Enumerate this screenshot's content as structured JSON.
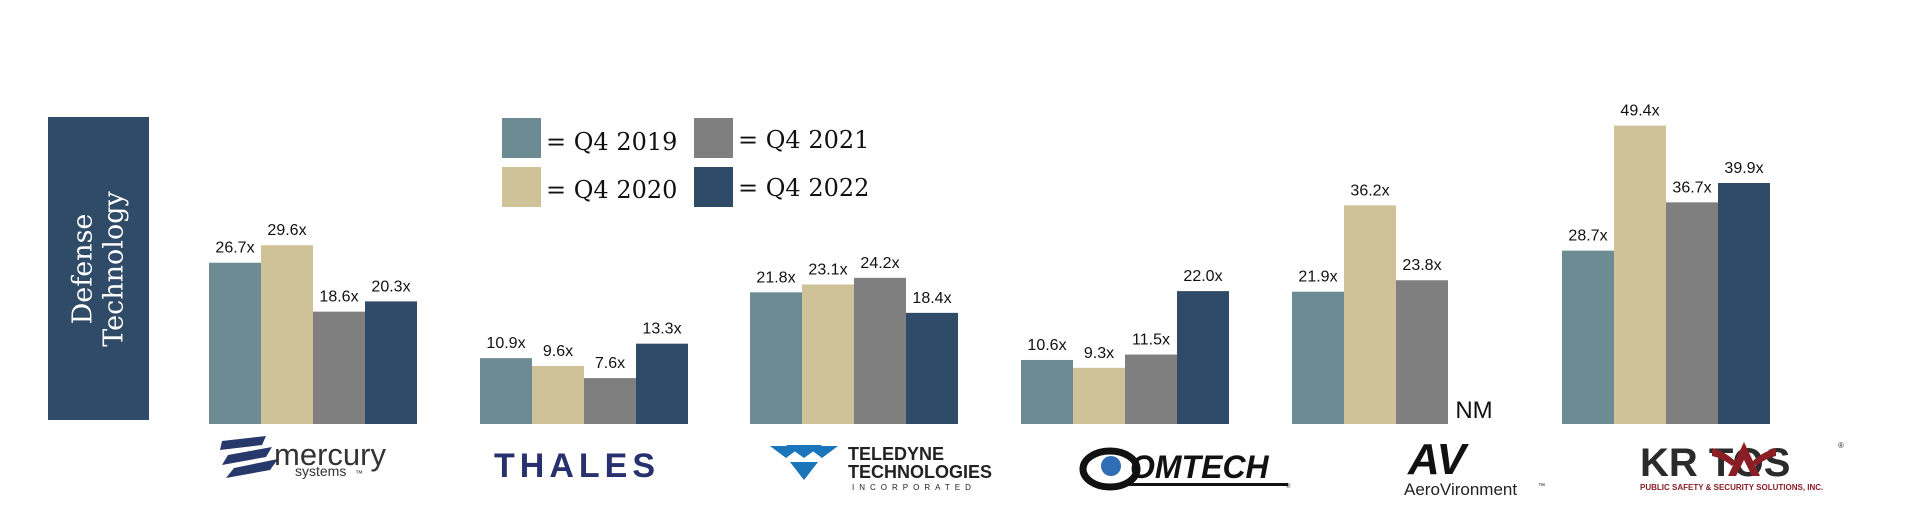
{
  "panel": {
    "line1": "Defense",
    "line2": "Technology"
  },
  "legend": [
    {
      "label": "= Q4 2019",
      "color": "#6d8b93"
    },
    {
      "label": "= Q4 2020",
      "color": "#cfc198"
    },
    {
      "label": "= Q4 2021",
      "color": "#7f7f7f"
    },
    {
      "label": "= Q4 2022",
      "color": "#2f4b67"
    }
  ],
  "chart_data": {
    "type": "bar",
    "categories": [
      "mercury systems",
      "THALES",
      "TELEDYNE TECHNOLOGIES INCORPORATED",
      "COMTECH",
      "AeroVironment",
      "KRATOS"
    ],
    "series": [
      {
        "name": "= Q4 2019",
        "values": [
          26.7,
          10.9,
          21.8,
          10.6,
          21.9,
          28.7
        ],
        "labels": [
          "26.7x",
          "10.9x",
          "21.8x",
          "10.6x",
          "21.9x",
          "28.7x"
        ]
      },
      {
        "name": "= Q4 2020",
        "values": [
          29.6,
          9.6,
          23.1,
          9.3,
          36.2,
          49.4
        ],
        "labels": [
          "29.6x",
          "9.6x",
          "23.1x",
          "9.3x",
          "36.2x",
          "49.4x"
        ]
      },
      {
        "name": "= Q4 2021",
        "values": [
          18.6,
          7.6,
          24.2,
          11.5,
          23.8,
          36.7
        ],
        "labels": [
          "18.6x",
          "7.6x",
          "24.2x",
          "11.5x",
          "23.8x",
          "36.7x"
        ]
      },
      {
        "name": "= Q4 2022",
        "values": [
          20.3,
          13.3,
          18.4,
          22.0,
          null,
          39.9
        ],
        "labels": [
          "20.3x",
          "13.3x",
          "18.4x",
          "22.0x",
          "NM",
          "39.9x"
        ]
      }
    ],
    "ylim": [
      0,
      50
    ],
    "grid": false,
    "legend_position": "top-left"
  },
  "logos": {
    "mercury": {
      "word": "mercury",
      "sub": "systems",
      "tm": "™"
    },
    "thales": {
      "word": "THALES"
    },
    "teledyne": {
      "line1": "TELEDYNE",
      "line2": "TECHNOLOGIES",
      "line3": "INCORPORATED"
    },
    "comtech": {
      "word": "OMTECH",
      "reg": "®"
    },
    "aerovironment": {
      "mark": "AV",
      "word": "AeroVironment",
      "tm": "™"
    },
    "kratos": {
      "word": "KR  TOS",
      "sub": "PUBLIC SAFETY & SECURITY SOLUTIONS, INC.",
      "reg": "®"
    }
  }
}
